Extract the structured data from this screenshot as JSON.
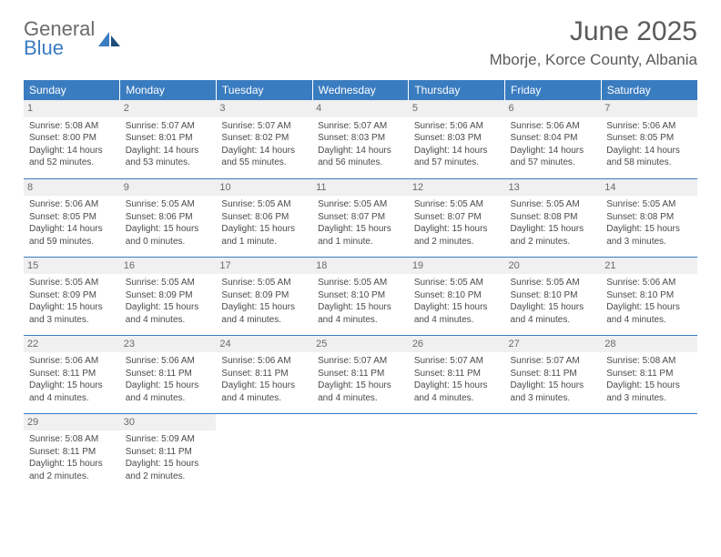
{
  "logo": {
    "word1": "General",
    "word2": "Blue"
  },
  "title": "June 2025",
  "location": "Mborje, Korce County, Albania",
  "colors": {
    "header_bg": "#3a7cc0",
    "header_text": "#ffffff",
    "daynum_bg": "#f0f0f0",
    "daynum_text": "#6a6a6a",
    "body_text": "#4a4a4a",
    "border": "#3a7cc0",
    "page_bg": "#ffffff",
    "title_text": "#5a5a5a",
    "logo_gray": "#6a6a6a",
    "logo_blue": "#3a7cc0"
  },
  "fonts": {
    "title_size": 30,
    "location_size": 17,
    "weekday_size": 12,
    "daynum_size": 11,
    "cell_size": 10
  },
  "weekdays": [
    "Sunday",
    "Monday",
    "Tuesday",
    "Wednesday",
    "Thursday",
    "Friday",
    "Saturday"
  ],
  "weeks": [
    [
      {
        "n": "1",
        "sr": "Sunrise: 5:08 AM",
        "ss": "Sunset: 8:00 PM",
        "dl": "Daylight: 14 hours and 52 minutes."
      },
      {
        "n": "2",
        "sr": "Sunrise: 5:07 AM",
        "ss": "Sunset: 8:01 PM",
        "dl": "Daylight: 14 hours and 53 minutes."
      },
      {
        "n": "3",
        "sr": "Sunrise: 5:07 AM",
        "ss": "Sunset: 8:02 PM",
        "dl": "Daylight: 14 hours and 55 minutes."
      },
      {
        "n": "4",
        "sr": "Sunrise: 5:07 AM",
        "ss": "Sunset: 8:03 PM",
        "dl": "Daylight: 14 hours and 56 minutes."
      },
      {
        "n": "5",
        "sr": "Sunrise: 5:06 AM",
        "ss": "Sunset: 8:03 PM",
        "dl": "Daylight: 14 hours and 57 minutes."
      },
      {
        "n": "6",
        "sr": "Sunrise: 5:06 AM",
        "ss": "Sunset: 8:04 PM",
        "dl": "Daylight: 14 hours and 57 minutes."
      },
      {
        "n": "7",
        "sr": "Sunrise: 5:06 AM",
        "ss": "Sunset: 8:05 PM",
        "dl": "Daylight: 14 hours and 58 minutes."
      }
    ],
    [
      {
        "n": "8",
        "sr": "Sunrise: 5:06 AM",
        "ss": "Sunset: 8:05 PM",
        "dl": "Daylight: 14 hours and 59 minutes."
      },
      {
        "n": "9",
        "sr": "Sunrise: 5:05 AM",
        "ss": "Sunset: 8:06 PM",
        "dl": "Daylight: 15 hours and 0 minutes."
      },
      {
        "n": "10",
        "sr": "Sunrise: 5:05 AM",
        "ss": "Sunset: 8:06 PM",
        "dl": "Daylight: 15 hours and 1 minute."
      },
      {
        "n": "11",
        "sr": "Sunrise: 5:05 AM",
        "ss": "Sunset: 8:07 PM",
        "dl": "Daylight: 15 hours and 1 minute."
      },
      {
        "n": "12",
        "sr": "Sunrise: 5:05 AM",
        "ss": "Sunset: 8:07 PM",
        "dl": "Daylight: 15 hours and 2 minutes."
      },
      {
        "n": "13",
        "sr": "Sunrise: 5:05 AM",
        "ss": "Sunset: 8:08 PM",
        "dl": "Daylight: 15 hours and 2 minutes."
      },
      {
        "n": "14",
        "sr": "Sunrise: 5:05 AM",
        "ss": "Sunset: 8:08 PM",
        "dl": "Daylight: 15 hours and 3 minutes."
      }
    ],
    [
      {
        "n": "15",
        "sr": "Sunrise: 5:05 AM",
        "ss": "Sunset: 8:09 PM",
        "dl": "Daylight: 15 hours and 3 minutes."
      },
      {
        "n": "16",
        "sr": "Sunrise: 5:05 AM",
        "ss": "Sunset: 8:09 PM",
        "dl": "Daylight: 15 hours and 4 minutes."
      },
      {
        "n": "17",
        "sr": "Sunrise: 5:05 AM",
        "ss": "Sunset: 8:09 PM",
        "dl": "Daylight: 15 hours and 4 minutes."
      },
      {
        "n": "18",
        "sr": "Sunrise: 5:05 AM",
        "ss": "Sunset: 8:10 PM",
        "dl": "Daylight: 15 hours and 4 minutes."
      },
      {
        "n": "19",
        "sr": "Sunrise: 5:05 AM",
        "ss": "Sunset: 8:10 PM",
        "dl": "Daylight: 15 hours and 4 minutes."
      },
      {
        "n": "20",
        "sr": "Sunrise: 5:05 AM",
        "ss": "Sunset: 8:10 PM",
        "dl": "Daylight: 15 hours and 4 minutes."
      },
      {
        "n": "21",
        "sr": "Sunrise: 5:06 AM",
        "ss": "Sunset: 8:10 PM",
        "dl": "Daylight: 15 hours and 4 minutes."
      }
    ],
    [
      {
        "n": "22",
        "sr": "Sunrise: 5:06 AM",
        "ss": "Sunset: 8:11 PM",
        "dl": "Daylight: 15 hours and 4 minutes."
      },
      {
        "n": "23",
        "sr": "Sunrise: 5:06 AM",
        "ss": "Sunset: 8:11 PM",
        "dl": "Daylight: 15 hours and 4 minutes."
      },
      {
        "n": "24",
        "sr": "Sunrise: 5:06 AM",
        "ss": "Sunset: 8:11 PM",
        "dl": "Daylight: 15 hours and 4 minutes."
      },
      {
        "n": "25",
        "sr": "Sunrise: 5:07 AM",
        "ss": "Sunset: 8:11 PM",
        "dl": "Daylight: 15 hours and 4 minutes."
      },
      {
        "n": "26",
        "sr": "Sunrise: 5:07 AM",
        "ss": "Sunset: 8:11 PM",
        "dl": "Daylight: 15 hours and 4 minutes."
      },
      {
        "n": "27",
        "sr": "Sunrise: 5:07 AM",
        "ss": "Sunset: 8:11 PM",
        "dl": "Daylight: 15 hours and 3 minutes."
      },
      {
        "n": "28",
        "sr": "Sunrise: 5:08 AM",
        "ss": "Sunset: 8:11 PM",
        "dl": "Daylight: 15 hours and 3 minutes."
      }
    ],
    [
      {
        "n": "29",
        "sr": "Sunrise: 5:08 AM",
        "ss": "Sunset: 8:11 PM",
        "dl": "Daylight: 15 hours and 2 minutes."
      },
      {
        "n": "30",
        "sr": "Sunrise: 5:09 AM",
        "ss": "Sunset: 8:11 PM",
        "dl": "Daylight: 15 hours and 2 minutes."
      },
      null,
      null,
      null,
      null,
      null
    ]
  ]
}
